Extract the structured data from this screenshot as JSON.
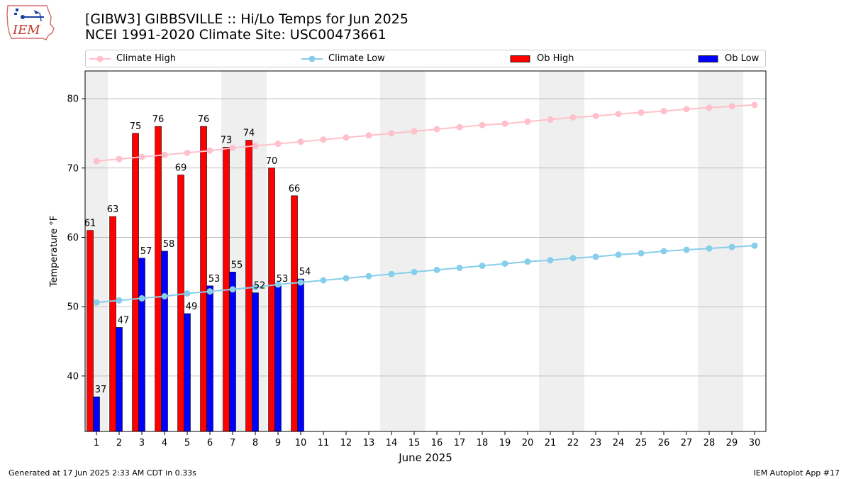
{
  "logo": {
    "text": "IEM"
  },
  "header": {
    "title": "[GIBW3] GIBBSVILLE :: Hi/Lo Temps for Jun 2025",
    "subtitle": "NCEI 1991-2020 Climate Site: USC00473661"
  },
  "legend": {
    "climate_high": "Climate High",
    "climate_low": "Climate Low",
    "ob_high": "Ob High",
    "ob_low": "Ob Low"
  },
  "footer": {
    "left": "Generated at 17 Jun 2025 2:33 AM CDT in 0.33s",
    "right": "IEM Autoplot App #17"
  },
  "colors": {
    "climate_high": "#ffc0cb",
    "climate_low": "#87ceeb",
    "ob_high": "#ff0000",
    "ob_low": "#0000ff",
    "weekend_band": "#efefef",
    "grid": "#b0b0b0"
  },
  "chart_data": {
    "type": "bar",
    "xlabel": "June 2025",
    "ylabel": "Temperature °F",
    "xlim": [
      0.5,
      30.5
    ],
    "ylim": [
      32,
      84
    ],
    "yticks": [
      40,
      50,
      60,
      70,
      80
    ],
    "grid": "y",
    "legend_position": "top",
    "x": [
      1,
      2,
      3,
      4,
      5,
      6,
      7,
      8,
      9,
      10,
      11,
      12,
      13,
      14,
      15,
      16,
      17,
      18,
      19,
      20,
      21,
      22,
      23,
      24,
      25,
      26,
      27,
      28,
      29,
      30
    ],
    "weekend_bands": [
      [
        0.5,
        1.5
      ],
      [
        6.5,
        8.5
      ],
      [
        13.5,
        15.5
      ],
      [
        20.5,
        22.5
      ],
      [
        27.5,
        29.5
      ]
    ],
    "series": [
      {
        "name": "Ob High",
        "kind": "bar",
        "x": [
          1,
          2,
          3,
          4,
          5,
          6,
          7,
          8,
          9,
          10
        ],
        "values": [
          61,
          63,
          75,
          76,
          69,
          76,
          73,
          74,
          70,
          66
        ]
      },
      {
        "name": "Ob Low",
        "kind": "bar",
        "x": [
          1,
          2,
          3,
          4,
          5,
          6,
          7,
          8,
          9,
          10
        ],
        "values": [
          37,
          47,
          57,
          58,
          49,
          53,
          55,
          52,
          53,
          54
        ]
      },
      {
        "name": "Climate High",
        "kind": "line",
        "values": [
          71.0,
          71.3,
          71.6,
          71.9,
          72.2,
          72.5,
          72.9,
          73.2,
          73.5,
          73.8,
          74.1,
          74.4,
          74.7,
          75.0,
          75.3,
          75.6,
          75.9,
          76.2,
          76.4,
          76.7,
          77.0,
          77.3,
          77.5,
          77.8,
          78.0,
          78.2,
          78.5,
          78.7,
          78.9,
          79.1
        ]
      },
      {
        "name": "Climate Low",
        "kind": "line",
        "values": [
          50.6,
          50.9,
          51.2,
          51.5,
          51.9,
          52.2,
          52.5,
          52.8,
          53.2,
          53.5,
          53.8,
          54.1,
          54.4,
          54.7,
          55.0,
          55.3,
          55.6,
          55.9,
          56.2,
          56.5,
          56.7,
          57.0,
          57.2,
          57.5,
          57.7,
          58.0,
          58.2,
          58.4,
          58.6,
          58.8
        ]
      }
    ]
  }
}
